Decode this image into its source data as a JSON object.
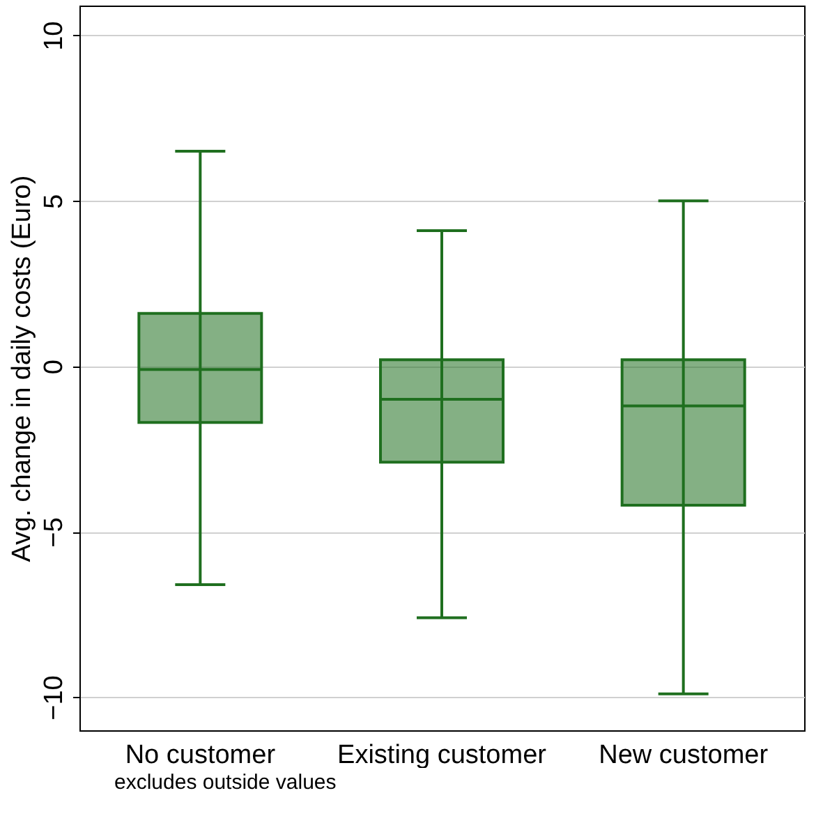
{
  "chart_data": {
    "type": "box",
    "ylabel": "Avg. change in daily costs (Euro)",
    "categories": [
      "No customer",
      "Existing customer",
      "New customer"
    ],
    "series": [
      {
        "color": "#1f6f1f",
        "boxes": [
          {
            "low": -6.6,
            "q1": -1.7,
            "median": -0.1,
            "q3": 1.6,
            "high": 6.5
          },
          {
            "low": -7.6,
            "q1": -2.9,
            "median": -1.0,
            "q3": 0.2,
            "high": 4.1
          },
          {
            "low": -9.9,
            "q1": -4.2,
            "median": -1.2,
            "q3": 0.2,
            "high": 5.0
          }
        ]
      }
    ],
    "ylim": [
      -11,
      10.9
    ],
    "yticks": [
      -10,
      -5,
      0,
      5,
      10
    ],
    "grid": "y",
    "annotations": [
      "excludes outside values"
    ]
  }
}
